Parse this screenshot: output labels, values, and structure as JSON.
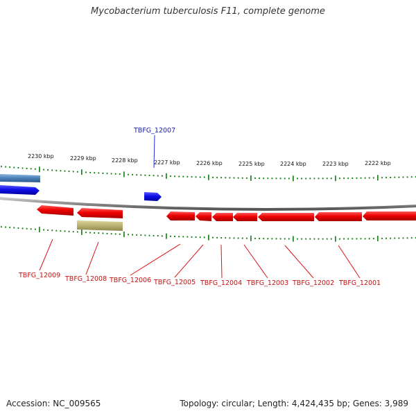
{
  "title": "Mycobacterium tuberculosis F11, complete genome",
  "footer": {
    "accession": "Accession: NC_009565",
    "stats": "Topology: circular; Length: 4,424,435 bp; Genes: 3,989"
  },
  "colors": {
    "forward_gene": "#1010e8",
    "forward_gene_light": "#4a7fb8",
    "reverse_gene": "#ee0000",
    "other_feature": "#b8b070",
    "ticks": "#0a7a0a",
    "backbone": "#888888",
    "forward_label": "#1a1aa8",
    "reverse_label": "#c41010"
  },
  "scale_labels": [
    "2230 kbp",
    "2229 kbp",
    "2228 kbp",
    "2227 kbp",
    "2226 kbp",
    "2225 kbp",
    "2224 kbp",
    "2223 kbp",
    "2222 kbp"
  ],
  "genes": [
    {
      "id": "TBFG_12007",
      "strand": "forward"
    },
    {
      "id": "TBFG_12009",
      "strand": "reverse"
    },
    {
      "id": "TBFG_12008",
      "strand": "reverse"
    },
    {
      "id": "TBFG_12006",
      "strand": "reverse"
    },
    {
      "id": "TBFG_12005",
      "strand": "reverse"
    },
    {
      "id": "TBFG_12004",
      "strand": "reverse"
    },
    {
      "id": "TBFG_12003",
      "strand": "reverse"
    },
    {
      "id": "TBFG_12002",
      "strand": "reverse"
    },
    {
      "id": "TBFG_12001",
      "strand": "reverse"
    }
  ]
}
